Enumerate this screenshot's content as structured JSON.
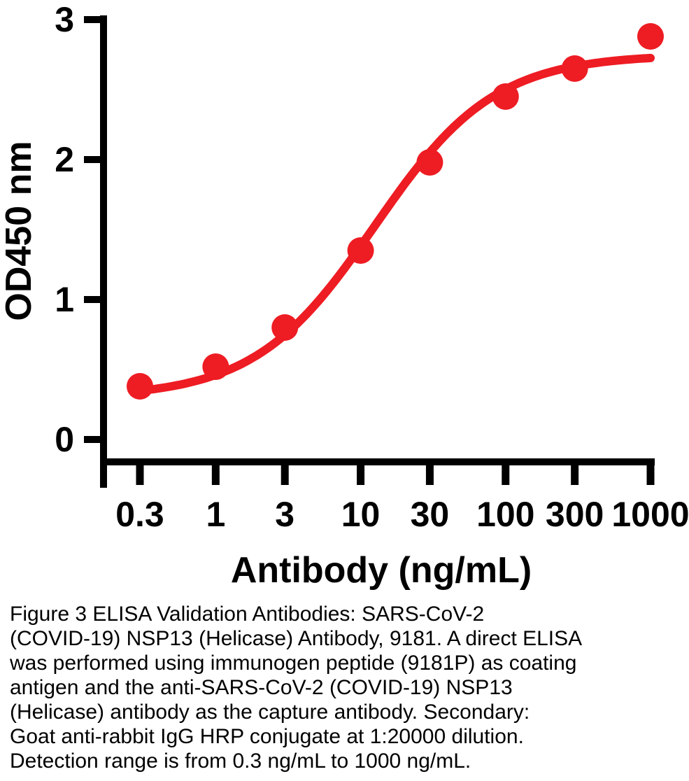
{
  "chart_data": {
    "type": "line",
    "title": "",
    "xlabel": "Antibody (ng/mL)",
    "ylabel": "OD450 nm",
    "x_scale": "log",
    "xlim": [
      0.3,
      1000
    ],
    "ylim": [
      0,
      3
    ],
    "x_ticks": [
      0.3,
      1,
      3,
      10,
      30,
      100,
      300,
      1000
    ],
    "x_tick_labels": [
      "0.3",
      "1",
      "3",
      "10",
      "30",
      "100",
      "300",
      "1000"
    ],
    "y_ticks": [
      0,
      1,
      2,
      3
    ],
    "y_tick_labels": [
      "0",
      "1",
      "2",
      "3"
    ],
    "grid": false,
    "legend": false,
    "axis_color": "#000000",
    "series": [
      {
        "name": "SARS-CoV-2 (COVID-19) NSP13 (Helicase) Antibody",
        "x": [
          0.3,
          1,
          3,
          10,
          30,
          100,
          300,
          1000
        ],
        "y": [
          0.38,
          0.52,
          0.8,
          1.35,
          1.98,
          2.45,
          2.65,
          2.88
        ],
        "marker": "circle",
        "marker_color": "#ee1c23",
        "line_color": "#ee1c23"
      }
    ],
    "curve_fit": {
      "model": "4PL",
      "bottom": 0.3,
      "top": 2.75,
      "ec50": 12.5,
      "hill": 1.05
    }
  },
  "caption": {
    "lines": [
      "Figure 3 ELISA Validation Antibodies: SARS-CoV-2",
      "(COVID-19) NSP13 (Helicase) Antibody, 9181. A direct ELISA",
      "was performed using immunogen peptide (9181P) as coating",
      "antigen and the anti-SARS-CoV-2 (COVID-19) NSP13",
      "(Helicase) antibody as the capture antibody. Secondary:",
      "Goat anti-rabbit IgG HRP conjugate at 1:20000 dilution.",
      "Detection range is from 0.3 ng/mL to 1000 ng/mL."
    ]
  }
}
